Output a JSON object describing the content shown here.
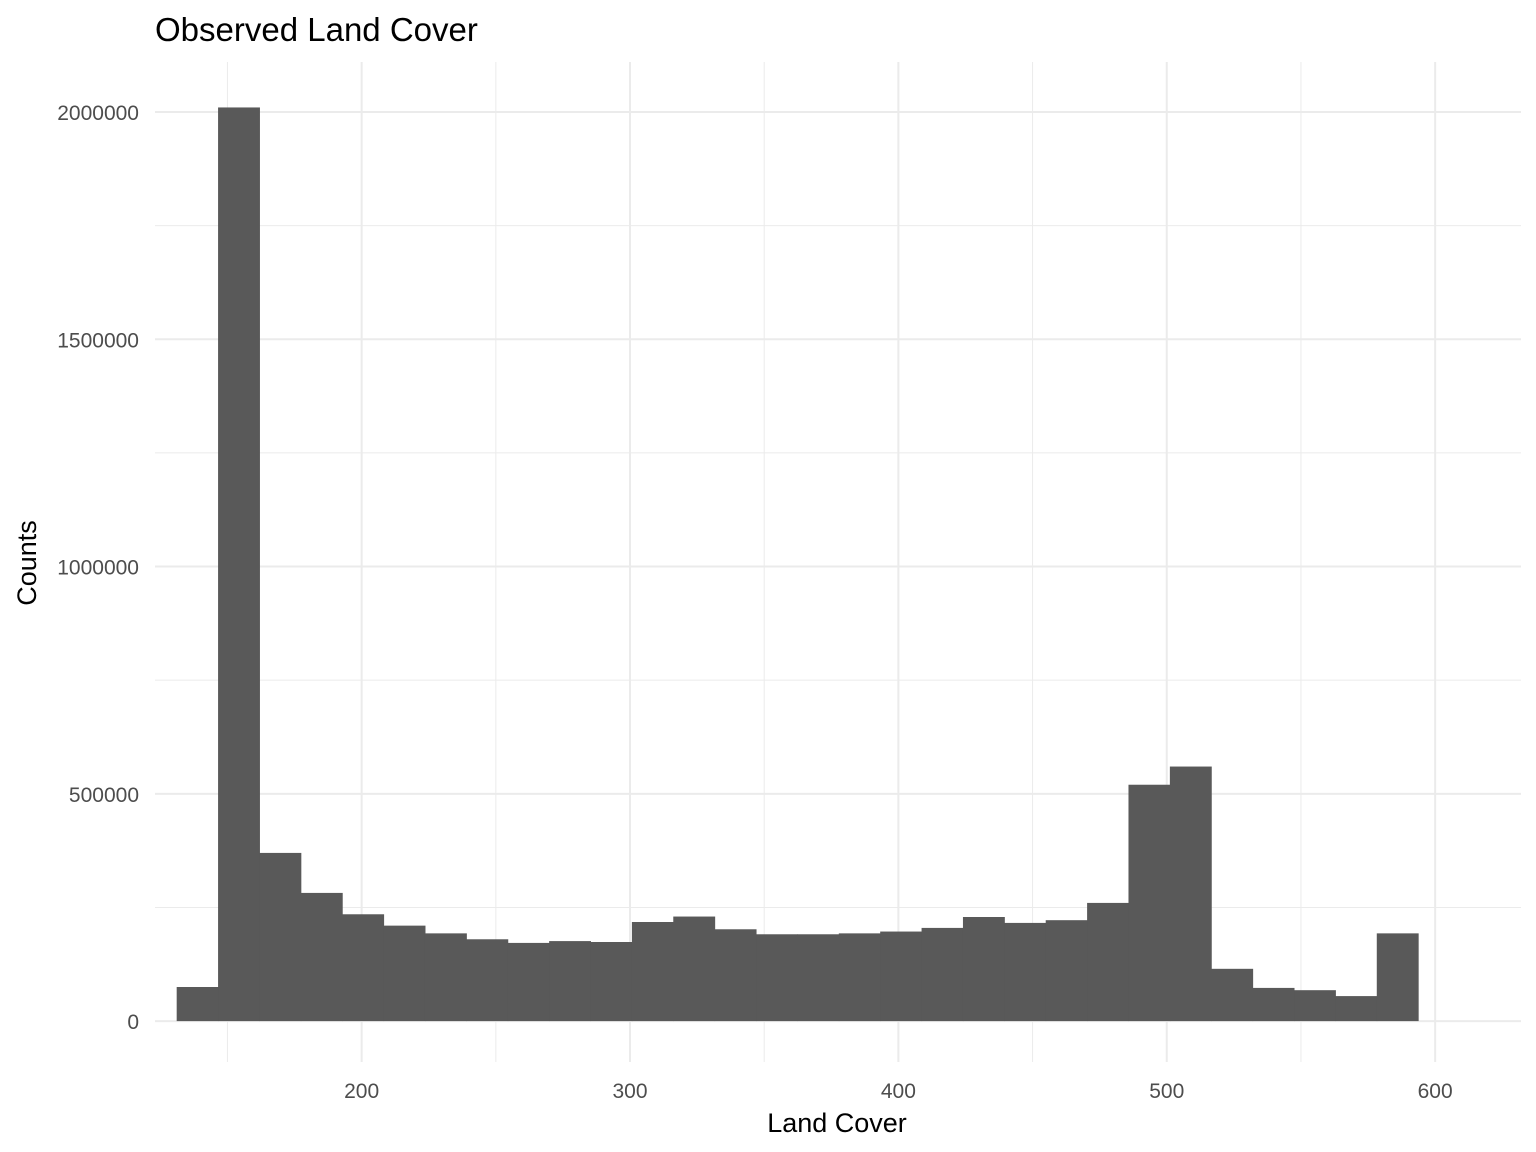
{
  "chart_data": {
    "type": "bar",
    "title": "Observed Land Cover",
    "xlabel": "Land Cover",
    "ylabel": "Counts",
    "xlim": [
      123,
      632
    ],
    "ylim": [
      -90000,
      2110000
    ],
    "x_ticks": [
      200,
      300,
      400,
      500,
      600
    ],
    "x_tick_labels": [
      "200",
      "300",
      "400",
      "500",
      "600"
    ],
    "y_ticks": [
      0,
      500000,
      1000000,
      1500000,
      2000000
    ],
    "y_tick_labels": [
      "0",
      "500000",
      "1000000",
      "1500000",
      "2000000"
    ],
    "grid": true,
    "bin_width": 15.42,
    "bin_start": 146.5,
    "bar_color": "#595959",
    "values": [
      75000,
      2010000,
      370000,
      282000,
      235000,
      210000,
      193000,
      180000,
      172000,
      176000,
      174000,
      218000,
      230000,
      202000,
      191000,
      191000,
      193000,
      197000,
      205000,
      229000,
      216000,
      222000,
      260000,
      520000,
      560000,
      115000,
      73000,
      68000,
      55000,
      193000
    ]
  }
}
